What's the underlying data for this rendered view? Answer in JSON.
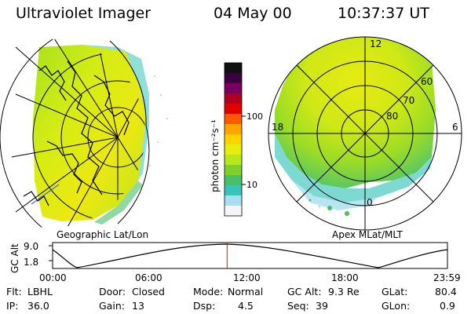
{
  "header": {
    "instrument": "Ultraviolet Imager",
    "date": "04 May 00",
    "time": "10:37:37 UT"
  },
  "colorbar": {
    "label": "photon cm⁻²s⁻¹",
    "ticks": [
      "100",
      "10"
    ],
    "scale": "log",
    "colors": [
      "#101010",
      "#3a0040",
      "#7a0060",
      "#b00020",
      "#e00000",
      "#ff5a00",
      "#ffa400",
      "#ffd200",
      "#e6ee10",
      "#b8e81a",
      "#7ed02a",
      "#48c068",
      "#38c4b8",
      "#a8dff0",
      "#f4f6f8"
    ]
  },
  "left_panel": {
    "label": "Geographic Lat/Lon"
  },
  "right_panel": {
    "label": "Apex MLat/MLT",
    "mlt_labels": {
      "top": "12",
      "left": "18",
      "right": "6",
      "bottom": "0"
    },
    "lat_labels": [
      "60",
      "70",
      "80"
    ]
  },
  "timeline": {
    "axis_label": "GC Alt",
    "y_ticks": [
      "9.0",
      "1.8"
    ],
    "x_ticks": [
      "00:00",
      "06:00",
      "12:00",
      "18:00",
      "23:59"
    ],
    "current_time_fraction": 0.442
  },
  "info": {
    "row1": [
      {
        "label": "Flt:",
        "value": "LBHL"
      },
      {
        "label": "Door:",
        "value": "Closed"
      },
      {
        "label": "Mode:",
        "value": "Normal"
      },
      {
        "label": "GC Alt:",
        "value": "9.3 Re"
      },
      {
        "label": "GLat:",
        "value": "80.4"
      }
    ],
    "row2": [
      {
        "label": "IP:",
        "value": "36.0"
      },
      {
        "label": "Gain:",
        "value": "13"
      },
      {
        "label": "Dsp:",
        "value": "4.5"
      },
      {
        "label": "Seq:",
        "value": "39"
      },
      {
        "label": "GLon:",
        "value": "0.9"
      }
    ]
  }
}
